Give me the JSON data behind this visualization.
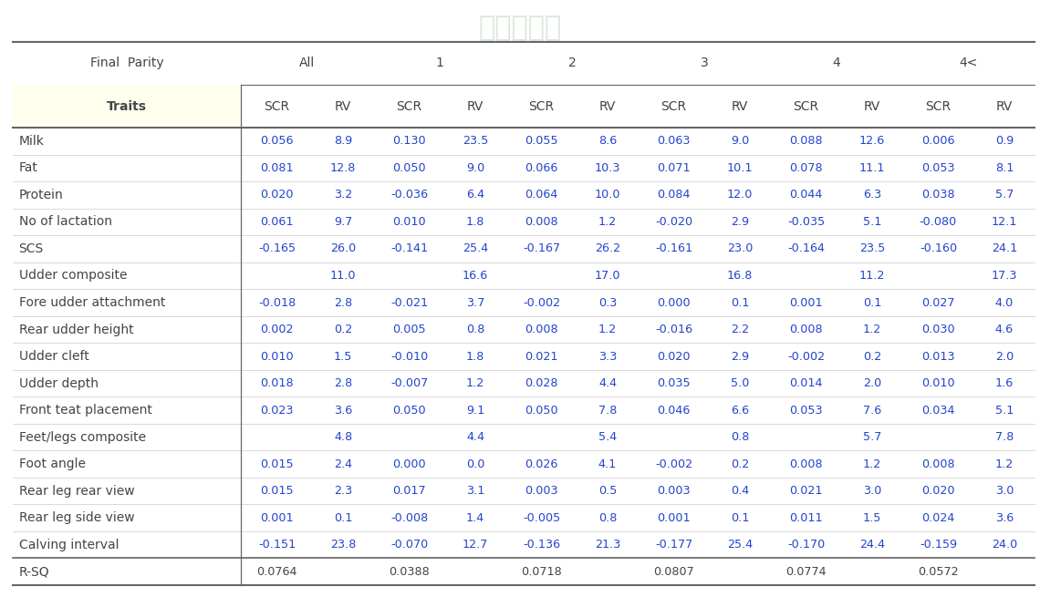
{
  "header_row1_labels": [
    "Final  Parity",
    "All",
    "1",
    "2",
    "3",
    "4",
    "4<"
  ],
  "header_row2_labels": [
    "Traits",
    "SCR",
    "RV",
    "SCR",
    "RV",
    "SCR",
    "RV",
    "SCR",
    "RV",
    "SCR",
    "RV",
    "SCR",
    "RV"
  ],
  "rows": [
    [
      "Milk",
      "0.056",
      "8.9",
      "0.130",
      "23.5",
      "0.055",
      "8.6",
      "0.063",
      "9.0",
      "0.088",
      "12.6",
      "0.006",
      "0.9"
    ],
    [
      "Fat",
      "0.081",
      "12.8",
      "0.050",
      "9.0",
      "0.066",
      "10.3",
      "0.071",
      "10.1",
      "0.078",
      "11.1",
      "0.053",
      "8.1"
    ],
    [
      "Protein",
      "0.020",
      "3.2",
      "-0.036",
      "6.4",
      "0.064",
      "10.0",
      "0.084",
      "12.0",
      "0.044",
      "6.3",
      "0.038",
      "5.7"
    ],
    [
      "No of lactation",
      "0.061",
      "9.7",
      "0.010",
      "1.8",
      "0.008",
      "1.2",
      "-0.020",
      "2.9",
      "-0.035",
      "5.1",
      "-0.080",
      "12.1"
    ],
    [
      "SCS",
      "-0.165",
      "26.0",
      "-0.141",
      "25.4",
      "-0.167",
      "26.2",
      "-0.161",
      "23.0",
      "-0.164",
      "23.5",
      "-0.160",
      "24.1"
    ],
    [
      "Udder composite",
      "",
      "11.0",
      "",
      "16.6",
      "",
      "17.0",
      "",
      "16.8",
      "",
      "11.2",
      "",
      "17.3"
    ],
    [
      " Fore udder attachment",
      "-0.018",
      "2.8",
      "-0.021",
      "3.7",
      "-0.002",
      "0.3",
      "0.000",
      "0.1",
      "0.001",
      "0.1",
      "0.027",
      "4.0"
    ],
    [
      " Rear udder height",
      "0.002",
      "0.2",
      "0.005",
      "0.8",
      "0.008",
      "1.2",
      "-0.016",
      "2.2",
      "0.008",
      "1.2",
      "0.030",
      "4.6"
    ],
    [
      " Udder cleft",
      "0.010",
      "1.5",
      "-0.010",
      "1.8",
      "0.021",
      "3.3",
      "0.020",
      "2.9",
      "-0.002",
      "0.2",
      "0.013",
      "2.0"
    ],
    [
      " Udder depth",
      "0.018",
      "2.8",
      "-0.007",
      "1.2",
      "0.028",
      "4.4",
      "0.035",
      "5.0",
      "0.014",
      "2.0",
      "0.010",
      "1.6"
    ],
    [
      " Front teat placement",
      "0.023",
      "3.6",
      "0.050",
      "9.1",
      "0.050",
      "7.8",
      "0.046",
      "6.6",
      "0.053",
      "7.6",
      "0.034",
      "5.1"
    ],
    [
      "Feet/legs composite",
      "",
      "4.8",
      "",
      "4.4",
      "",
      "5.4",
      "",
      "0.8",
      "",
      "5.7",
      "",
      "7.8"
    ],
    [
      " Foot angle",
      "0.015",
      "2.4",
      "0.000",
      "0.0",
      "0.026",
      "4.1",
      "-0.002",
      "0.2",
      "0.008",
      "1.2",
      "0.008",
      "1.2"
    ],
    [
      " Rear leg rear view",
      "0.015",
      "2.3",
      "0.017",
      "3.1",
      "0.003",
      "0.5",
      "0.003",
      "0.4",
      "0.021",
      "3.0",
      "0.020",
      "3.0"
    ],
    [
      " Rear leg side view",
      "0.001",
      "0.1",
      "-0.008",
      "1.4",
      "-0.005",
      "0.8",
      "0.001",
      "0.1",
      "0.011",
      "1.5",
      "0.024",
      "3.6"
    ],
    [
      "Calving interval",
      "-0.151",
      "23.8",
      "-0.070",
      "12.7",
      "-0.136",
      "21.3",
      "-0.177",
      "25.4",
      "-0.170",
      "24.4",
      "-0.159",
      "24.0"
    ],
    [
      "R-SQ",
      "0.0764",
      "",
      "0.0388",
      "",
      "0.0718",
      "",
      "0.0807",
      "",
      "0.0774",
      "",
      "0.0572",
      ""
    ]
  ],
  "bg_color": "#ffffff",
  "traits_col_bg": "#ffffee",
  "text_color": "#2244cc",
  "header_text_color": "#444444",
  "line_color": "#666666",
  "thin_line_color": "#bbbbbb",
  "font_size": 9.2,
  "header_font_size": 10.0,
  "traits_font_size": 10.0
}
